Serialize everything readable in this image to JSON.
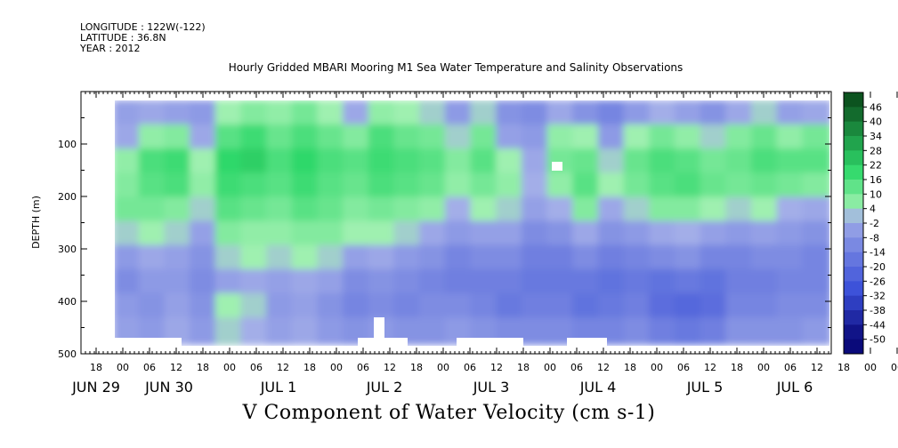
{
  "header": {
    "longitude": "LONGITUDE : 122W(-122)",
    "latitude": "LATITUDE : 36.8N",
    "year": "YEAR : 2012"
  },
  "title": "Hourly Gridded MBARI Mooring M1 Sea Water Temperature and Salinity Observations",
  "caption": "V Component of Water Velocity (cm s-1)",
  "colors": {
    "strong_negative": "#0a0a7a",
    "negative": "#3a4fd8",
    "weak_negative": "#a3aee8",
    "weak_positive": "#9ff0b0",
    "positive": "#2fd86a",
    "strong_positive": "#0a4a1a",
    "missing": "#ffffff"
  },
  "chart_data": {
    "type": "heatmap",
    "title": "Hourly Gridded MBARI Mooring M1 Sea Water Temperature and Salinity Observations",
    "xlabel": "",
    "ylabel": "DEPTH (m)",
    "ylim": [
      500,
      0
    ],
    "y_ticks": [
      100,
      200,
      300,
      400,
      500
    ],
    "x_hour_ticks": [
      "18",
      "00",
      "06",
      "12",
      "18",
      "00",
      "06",
      "12",
      "18",
      "00",
      "06",
      "12",
      "18",
      "00",
      "06",
      "12",
      "18",
      "00",
      "06",
      "12",
      "18",
      "00",
      "06",
      "12",
      "18",
      "00",
      "06",
      "12",
      "18",
      "00",
      "06",
      "12"
    ],
    "x_day_labels": [
      "JUN 29",
      "JUN 30",
      "JUL  1",
      "JUL  2",
      "JUL  3",
      "JUL  4",
      "JUL  5",
      "JUL  6"
    ],
    "colorbar_levels": [
      "46",
      "40",
      "34",
      "28",
      "22",
      "16",
      "10",
      "4",
      "-2",
      "-8",
      "-14",
      "-20",
      "-26",
      "-32",
      "-38",
      "-44",
      "-50"
    ],
    "colorbar_range": [
      -50,
      50
    ],
    "data_depth_range": [
      20,
      480
    ],
    "times": [
      "JUN 29 21",
      "JUN 30 03",
      "JUN 30 09",
      "JUN 30 15",
      "JUN 30 21",
      "JUL 1 03",
      "JUL 1 09",
      "JUL 1 15",
      "JUL 1 21",
      "JUL 2 03",
      "JUL 2 09",
      "JUL 2 15",
      "JUL 2 21",
      "JUL 3 03",
      "JUL 3 09",
      "JUL 3 15",
      "JUL 3 21",
      "JUL 4 03",
      "JUL 4 09",
      "JUL 4 15",
      "JUL 4 21",
      "JUL 5 03",
      "JUL 5 09",
      "JUL 5 15",
      "JUL 5 21",
      "JUL 6 03",
      "JUL 6 09",
      "JUL 6 15"
    ],
    "depths": [
      25,
      75,
      125,
      175,
      225,
      275,
      325,
      375,
      425,
      475
    ],
    "values": [
      [
        -4,
        -2,
        6,
        8,
        10,
        2,
        -6,
        -10,
        -6,
        -4
      ],
      [
        -2,
        6,
        16,
        14,
        10,
        4,
        -2,
        -6,
        -8,
        -6
      ],
      [
        -4,
        8,
        18,
        16,
        8,
        2,
        -4,
        -6,
        -4,
        -2
      ],
      [
        -6,
        -2,
        4,
        6,
        2,
        -4,
        -8,
        -10,
        -8,
        -6
      ],
      [
        4,
        14,
        20,
        18,
        14,
        8,
        2,
        -4,
        4,
        2
      ],
      [
        8,
        18,
        22,
        16,
        12,
        6,
        4,
        -2,
        2,
        0
      ],
      [
        6,
        12,
        16,
        14,
        10,
        6,
        2,
        -4,
        -6,
        -4
      ],
      [
        10,
        16,
        20,
        18,
        14,
        8,
        4,
        -2,
        -4,
        -2
      ],
      [
        4,
        12,
        16,
        14,
        12,
        8,
        2,
        -4,
        -8,
        -6
      ],
      [
        -2,
        8,
        14,
        12,
        8,
        4,
        -4,
        -10,
        -12,
        -8
      ],
      [
        6,
        16,
        18,
        16,
        10,
        4,
        -2,
        -8,
        -10,
        -6
      ],
      [
        4,
        12,
        16,
        14,
        8,
        2,
        -6,
        -10,
        -12,
        -8
      ],
      [
        2,
        10,
        14,
        12,
        6,
        -2,
        -8,
        -12,
        -10,
        -8
      ],
      [
        -6,
        2,
        8,
        6,
        0,
        -6,
        -12,
        -14,
        -10,
        -6
      ],
      [
        2,
        10,
        14,
        10,
        4,
        -4,
        -10,
        -14,
        -12,
        -8
      ],
      [
        -8,
        -4,
        4,
        6,
        2,
        -4,
        -10,
        -14,
        -16,
        -10
      ],
      [
        -10,
        -6,
        -2,
        0,
        -4,
        -10,
        -14,
        -16,
        -14,
        -10
      ],
      [
        -2,
        6,
        10,
        6,
        0,
        -8,
        -14,
        -16,
        -14,
        -10
      ],
      [
        -8,
        4,
        12,
        14,
        8,
        -2,
        -10,
        -16,
        -18,
        -12
      ],
      [
        -12,
        -6,
        2,
        4,
        -2,
        -8,
        -14,
        -18,
        -16,
        -12
      ],
      [
        -6,
        4,
        12,
        10,
        2,
        -6,
        -12,
        -16,
        -14,
        -10
      ],
      [
        0,
        10,
        16,
        14,
        8,
        -2,
        -10,
        -18,
        -20,
        -14
      ],
      [
        -4,
        6,
        14,
        16,
        8,
        0,
        -8,
        -16,
        -22,
        -16
      ],
      [
        -8,
        2,
        10,
        12,
        4,
        -4,
        -12,
        -18,
        -20,
        -14
      ],
      [
        -2,
        8,
        12,
        10,
        2,
        -6,
        -12,
        -14,
        -12,
        -8
      ],
      [
        2,
        12,
        16,
        12,
        4,
        -4,
        -10,
        -14,
        -12,
        -8
      ],
      [
        -4,
        6,
        14,
        10,
        0,
        -6,
        -10,
        -12,
        -10,
        -8
      ],
      [
        -2,
        10,
        14,
        8,
        -2,
        -8,
        -12,
        -12,
        -10,
        -6
      ]
    ]
  }
}
